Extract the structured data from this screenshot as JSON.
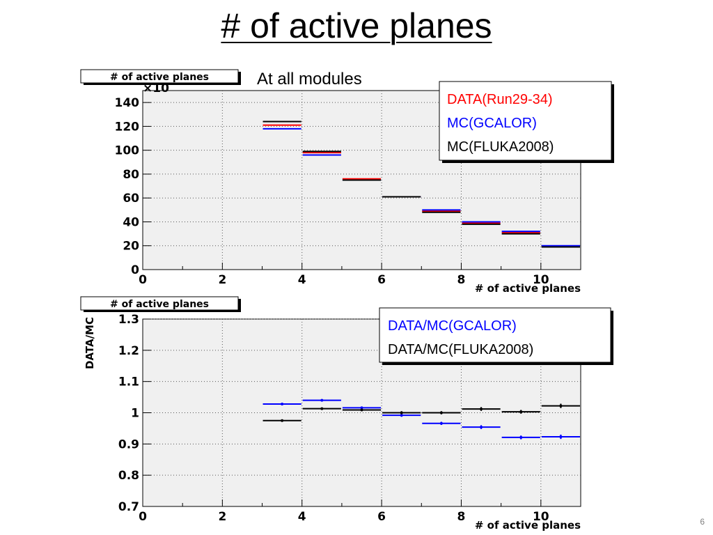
{
  "slide": {
    "title": "# of active planes",
    "number": "6"
  },
  "chart_data": [
    {
      "type": "step",
      "title_box": "# of active planes",
      "subtitle": "At all modules",
      "multiplier": "×10",
      "xlabel": "# of active planes",
      "ylabel": "",
      "xlim": [
        0,
        11
      ],
      "ylim": [
        0,
        150
      ],
      "xticks": [
        0,
        2,
        4,
        6,
        8,
        10
      ],
      "yticks": [
        0,
        20,
        40,
        60,
        80,
        100,
        120,
        140
      ],
      "grid": true,
      "legend_position": "top-right",
      "bins": [
        [
          3,
          4
        ],
        [
          4,
          5
        ],
        [
          5,
          6
        ],
        [
          6,
          7
        ],
        [
          7,
          8
        ],
        [
          8,
          9
        ],
        [
          9,
          10
        ],
        [
          10,
          11
        ]
      ],
      "series": [
        {
          "name": "DATA(Run29-34)",
          "color": "#ff0000",
          "values": [
            121,
            98,
            76,
            61,
            49,
            39,
            31,
            19
          ]
        },
        {
          "name": "MC(GCALOR)",
          "color": "#0000ff",
          "values": [
            118,
            96,
            75,
            61,
            50,
            40,
            32,
            20
          ]
        },
        {
          "name": "MC(FLUKA2008)",
          "color": "#000000",
          "values": [
            124,
            99,
            75,
            61,
            48,
            38,
            30,
            19
          ]
        }
      ]
    },
    {
      "type": "errorbar",
      "title_box": "# of active planes",
      "xlabel": "# of active planes",
      "ylabel": "DATA/MC",
      "xlim": [
        0,
        11
      ],
      "ylim": [
        0.7,
        1.3
      ],
      "xticks": [
        0,
        2,
        4,
        6,
        8,
        10
      ],
      "yticks": [
        0.7,
        0.8,
        0.9,
        1.0,
        1.1,
        1.2,
        1.3
      ],
      "ytick_labels": [
        "0.7",
        "0.8",
        "0.9",
        "1",
        "1.1",
        "1.2",
        "1.3"
      ],
      "grid": true,
      "legend_position": "top-right",
      "bins": [
        [
          3,
          4
        ],
        [
          4,
          5
        ],
        [
          5,
          6
        ],
        [
          6,
          7
        ],
        [
          7,
          8
        ],
        [
          8,
          9
        ],
        [
          9,
          10
        ],
        [
          10,
          11
        ]
      ],
      "series": [
        {
          "name": "DATA/MC(GCALOR)",
          "color": "#0000ff",
          "values": [
            1.028,
            1.04,
            1.016,
            0.992,
            0.966,
            0.954,
            0.921,
            0.923
          ],
          "errors": [
            0.002,
            0.003,
            0.004,
            0.005,
            0.005,
            0.006,
            0.006,
            0.007
          ]
        },
        {
          "name": "DATA/MC(FLUKA2008)",
          "color": "#000000",
          "values": [
            0.975,
            1.013,
            1.009,
            1.0,
            1.0,
            1.012,
            1.003,
            1.022
          ],
          "errors": [
            0.002,
            0.003,
            0.004,
            0.005,
            0.005,
            0.006,
            0.006,
            0.007
          ]
        }
      ]
    }
  ]
}
